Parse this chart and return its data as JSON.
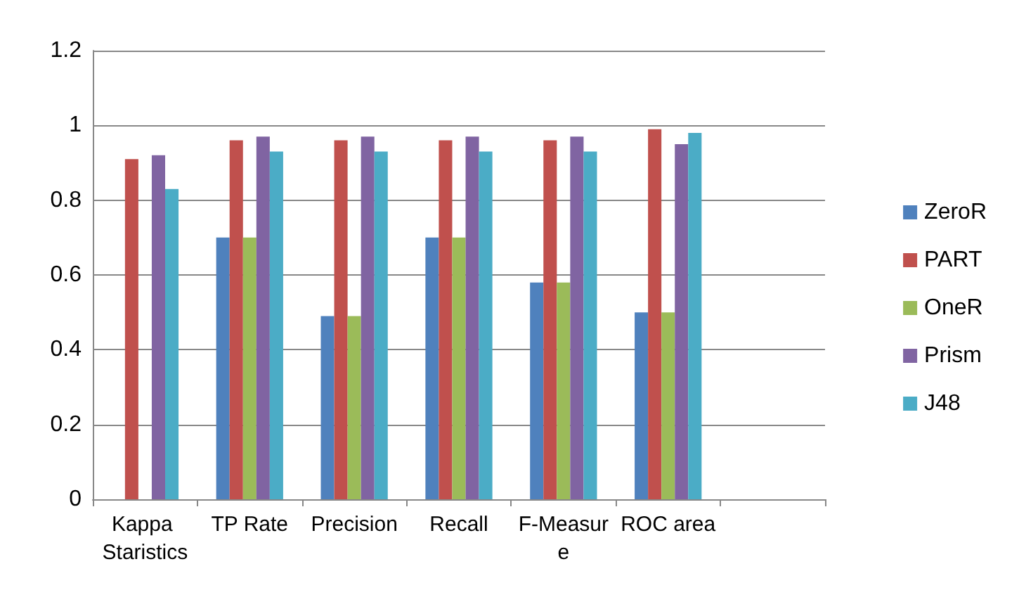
{
  "chart_data": {
    "type": "bar",
    "categories": [
      "Kappa Staristics",
      "TP Rate",
      "Precision",
      "Recall",
      "F-Measure",
      "ROC area",
      null
    ],
    "series": [
      {
        "name": "ZeroR",
        "color": "#4f81bd",
        "values": [
          0,
          0.7,
          0.49,
          0.7,
          0.58,
          0.5,
          null
        ]
      },
      {
        "name": "PART",
        "color": "#c0504d",
        "values": [
          0.91,
          0.96,
          0.96,
          0.96,
          0.96,
          0.99,
          null
        ]
      },
      {
        "name": "OneR",
        "color": "#9bbb59",
        "values": [
          0,
          0.7,
          0.49,
          0.7,
          0.58,
          0.5,
          null
        ]
      },
      {
        "name": "Prism",
        "color": "#8064a2",
        "values": [
          0.92,
          0.97,
          0.97,
          0.97,
          0.97,
          0.95,
          null
        ]
      },
      {
        "name": "J48",
        "color": "#4bacc6",
        "values": [
          0.83,
          0.93,
          0.93,
          0.93,
          0.93,
          0.98,
          null
        ]
      }
    ],
    "ylim": [
      0,
      1.2
    ],
    "yticks": [
      0,
      0.2,
      0.4,
      0.6,
      0.8,
      1,
      1.2
    ],
    "grid": "y",
    "legend": "right"
  }
}
